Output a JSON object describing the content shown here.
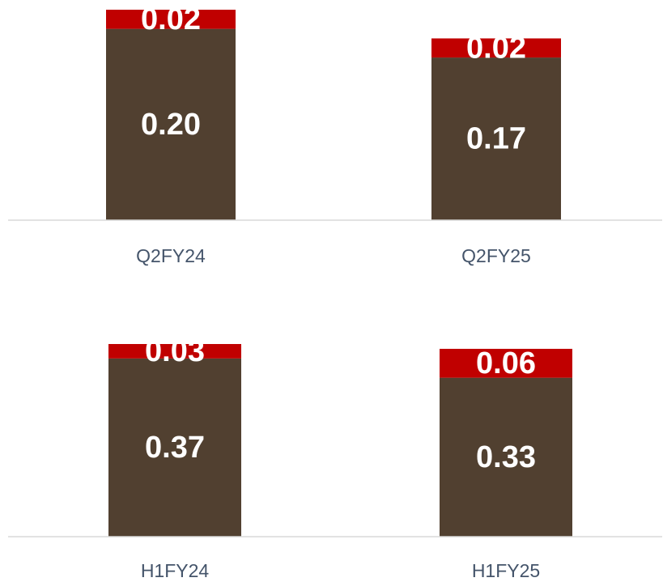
{
  "chart_data": [
    {
      "type": "stacked_bar",
      "categories": [
        "Q2FY24",
        "Q2FY25"
      ],
      "series": [
        {
          "color": "#514030",
          "values": [
            0.2,
            0.17
          ],
          "value_labels": [
            "0.20",
            "0.17"
          ]
        },
        {
          "color": "#c00000",
          "values": [
            0.02,
            0.02
          ],
          "value_labels": [
            "0.02",
            "0.02"
          ]
        }
      ],
      "ylim": [
        0,
        0.22
      ]
    },
    {
      "type": "stacked_bar",
      "categories": [
        "H1FY24",
        "H1FY25"
      ],
      "series": [
        {
          "color": "#514030",
          "values": [
            0.37,
            0.33
          ],
          "value_labels": [
            "0.37",
            "0.33"
          ]
        },
        {
          "color": "#c00000",
          "values": [
            0.03,
            0.06
          ],
          "value_labels": [
            "0.03",
            "0.06"
          ]
        }
      ],
      "ylim": [
        0,
        0.4
      ]
    }
  ]
}
